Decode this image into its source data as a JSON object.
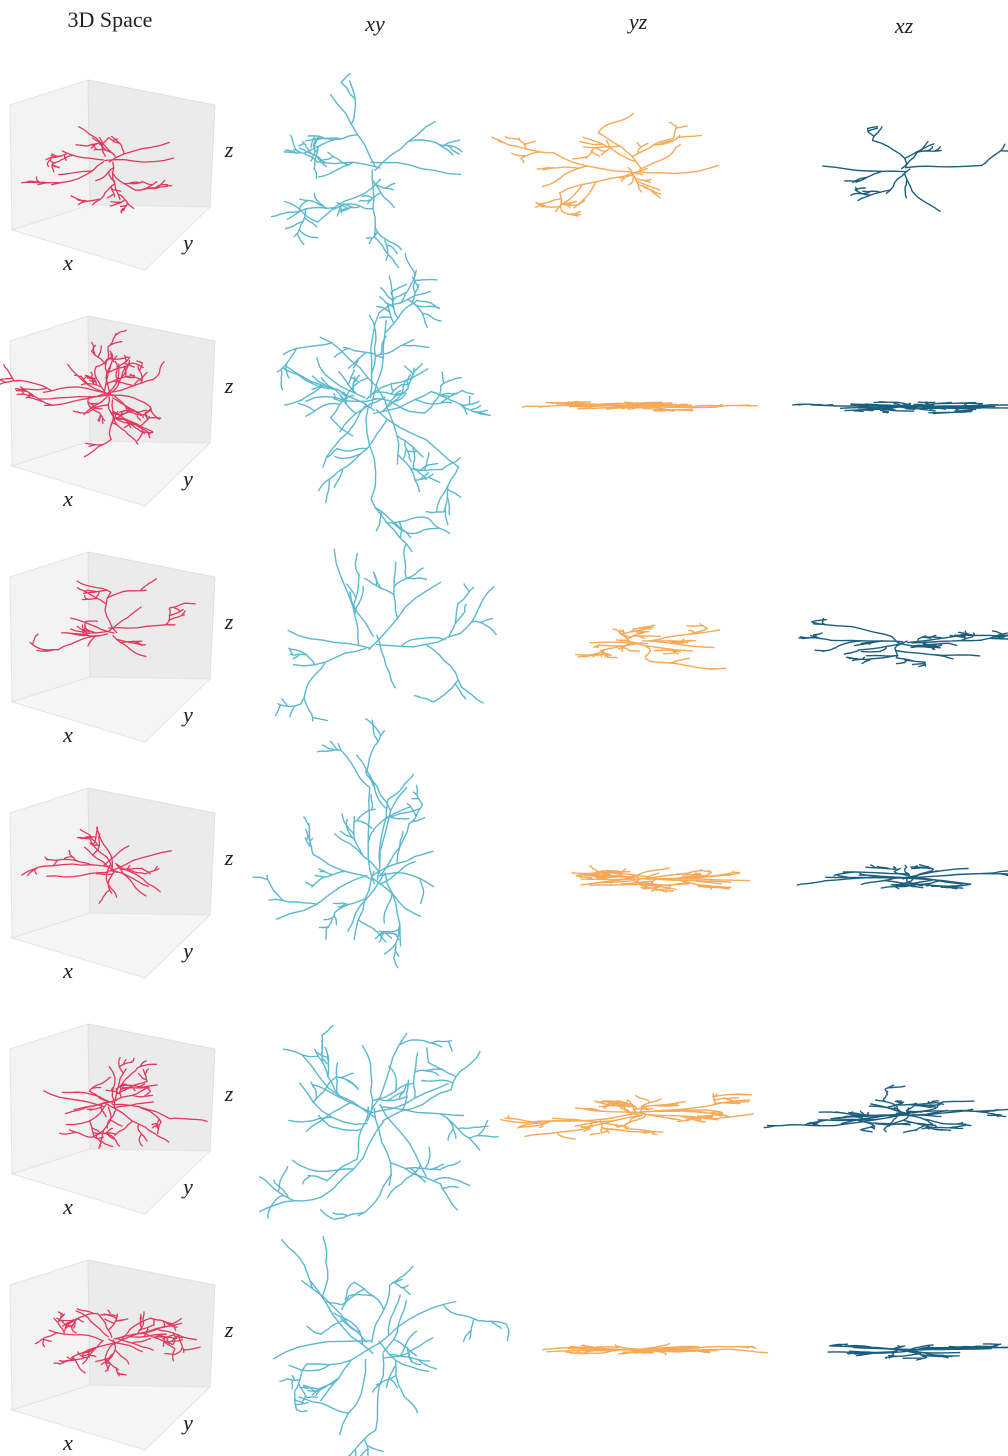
{
  "columns": [
    "3D Space",
    "xy",
    "yz",
    "xz"
  ],
  "rows": [
    {
      "axis_labels": {
        "x": "x",
        "y": "y",
        "z": "z"
      }
    },
    {
      "axis_labels": {
        "x": "x",
        "y": "y",
        "z": "z"
      }
    },
    {
      "axis_labels": {
        "x": "x",
        "y": "y",
        "z": "z"
      }
    },
    {
      "axis_labels": {
        "x": "x",
        "y": "y",
        "z": "z"
      }
    },
    {
      "axis_labels": {
        "x": "x",
        "y": "y",
        "z": "z"
      }
    },
    {
      "axis_labels": {
        "x": "x",
        "y": "y",
        "z": "z"
      }
    }
  ]
}
